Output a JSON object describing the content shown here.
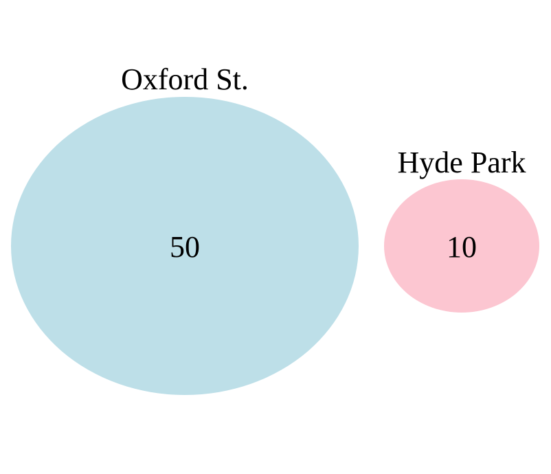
{
  "chart_data": {
    "type": "venn",
    "sets": [
      {
        "name": "Oxford St.",
        "value": 50,
        "color": "#bddfe8"
      },
      {
        "name": "Hyde Park",
        "value": 10,
        "color": "#fcc6d1"
      }
    ],
    "overlap": 0
  }
}
